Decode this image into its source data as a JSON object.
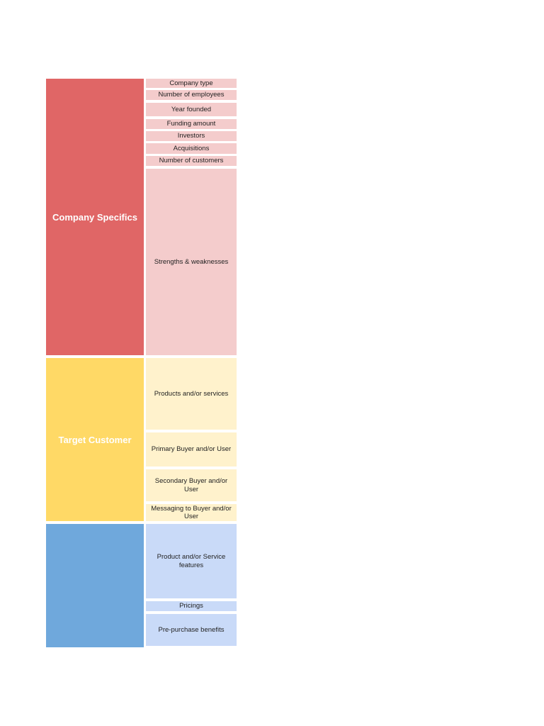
{
  "sections": [
    {
      "label": "Company Specifics",
      "items": [
        "Company type",
        "Number of employees",
        "Year founded",
        "Funding amount",
        "Investors",
        "Acquisitions",
        "Number of customers",
        "Strengths & weaknesses"
      ]
    },
    {
      "label": "Target Customer",
      "items": [
        "Products and/or services",
        "Primary Buyer and/or User",
        "Secondary Buyer and/or User",
        "Messaging to Buyer and/or User"
      ]
    },
    {
      "label": "",
      "items": [
        "Product and/or Service features",
        "Pricings",
        "Pre-purchase benefits"
      ]
    }
  ],
  "colors": {
    "section1_dark": "#e06666",
    "section1_light": "#f4cccc",
    "section2_dark": "#ffd966",
    "section2_light": "#fff2cc",
    "section3_dark": "#6fa8dc",
    "section3_light": "#c9daf8"
  }
}
